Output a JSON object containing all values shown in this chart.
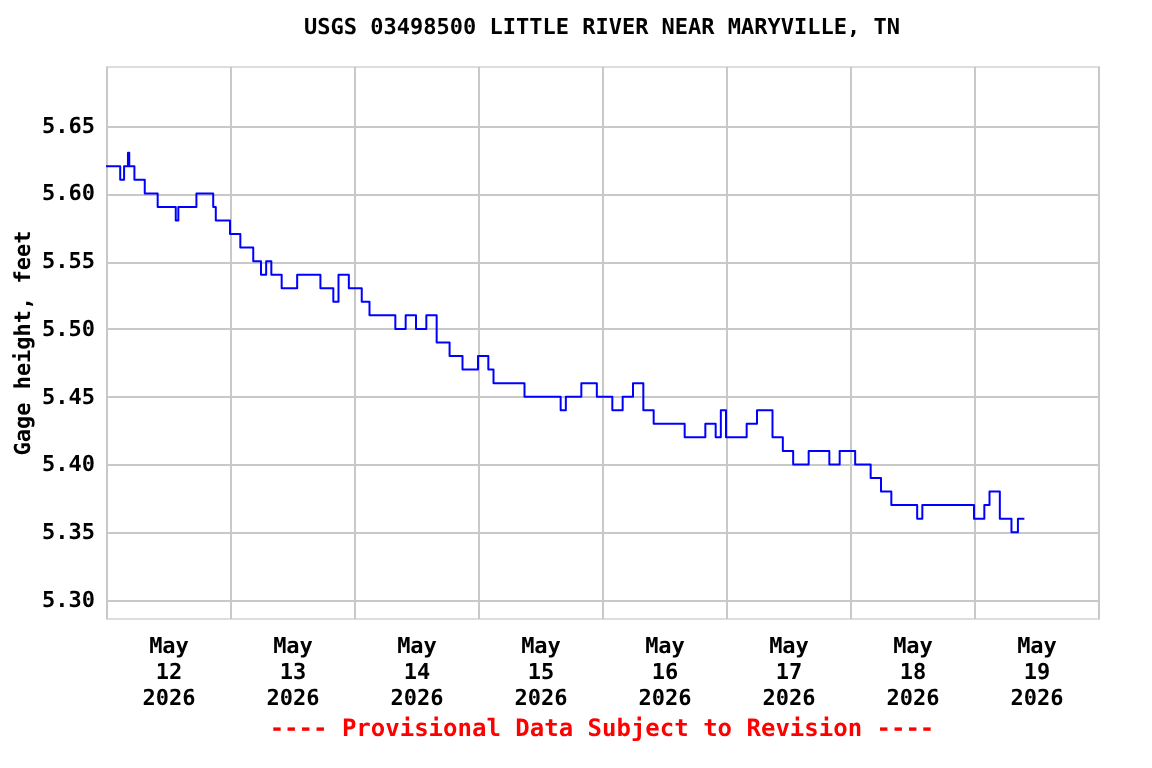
{
  "chart_data": {
    "type": "step",
    "title": "USGS 03498500 LITTLE RIVER NEAR MARYVILLE, TN",
    "ylabel": "Gage height, feet",
    "annotations": [
      "---- Provisional Data Subject to Revision ----"
    ],
    "x": [
      "2026-05-12T00:00",
      "2026-05-12T02:45",
      "2026-05-12T03:30",
      "2026-05-12T04:15",
      "2026-05-12T04:30",
      "2026-05-12T05:30",
      "2026-05-12T07:30",
      "2026-05-12T10:00",
      "2026-05-12T13:30",
      "2026-05-12T14:00",
      "2026-05-12T17:30",
      "2026-05-12T20:45",
      "2026-05-12T21:15",
      "2026-05-13T00:00",
      "2026-05-13T02:00",
      "2026-05-13T04:30",
      "2026-05-13T06:00",
      "2026-05-13T07:00",
      "2026-05-13T08:00",
      "2026-05-13T10:00",
      "2026-05-13T13:00",
      "2026-05-13T17:30",
      "2026-05-13T20:00",
      "2026-05-13T21:00",
      "2026-05-13T23:00",
      "2026-05-14T01:30",
      "2026-05-14T03:00",
      "2026-05-14T08:00",
      "2026-05-14T10:00",
      "2026-05-14T12:00",
      "2026-05-14T14:00",
      "2026-05-14T16:00",
      "2026-05-14T18:30",
      "2026-05-14T21:00",
      "2026-05-15T00:00",
      "2026-05-15T02:00",
      "2026-05-15T03:00",
      "2026-05-15T06:00",
      "2026-05-15T09:00",
      "2026-05-15T16:00",
      "2026-05-15T17:00",
      "2026-05-15T20:00",
      "2026-05-15T23:00",
      "2026-05-16T02:00",
      "2026-05-16T04:00",
      "2026-05-16T06:00",
      "2026-05-16T08:00",
      "2026-05-16T10:00",
      "2026-05-16T14:00",
      "2026-05-16T16:00",
      "2026-05-16T20:00",
      "2026-05-16T22:00",
      "2026-05-16T23:00",
      "2026-05-17T00:00",
      "2026-05-17T04:00",
      "2026-05-17T06:00",
      "2026-05-17T09:00",
      "2026-05-17T11:00",
      "2026-05-17T13:00",
      "2026-05-17T16:00",
      "2026-05-17T20:00",
      "2026-05-17T22:00",
      "2026-05-18T01:00",
      "2026-05-18T04:00",
      "2026-05-18T06:00",
      "2026-05-18T08:00",
      "2026-05-18T11:00",
      "2026-05-18T13:00",
      "2026-05-18T14:00",
      "2026-05-18T20:00",
      "2026-05-19T00:00",
      "2026-05-19T02:00",
      "2026-05-19T03:00",
      "2026-05-19T05:00",
      "2026-05-19T07:15",
      "2026-05-19T08:30",
      "2026-05-19T09:45"
    ],
    "series": [
      {
        "color": "#0000ff",
        "values": [
          5.62,
          5.61,
          5.62,
          5.63,
          5.62,
          5.61,
          5.6,
          5.59,
          5.58,
          5.59,
          5.6,
          5.59,
          5.58,
          5.57,
          5.56,
          5.55,
          5.54,
          5.55,
          5.54,
          5.53,
          5.54,
          5.53,
          5.52,
          5.54,
          5.53,
          5.52,
          5.51,
          5.5,
          5.51,
          5.5,
          5.51,
          5.49,
          5.48,
          5.47,
          5.48,
          5.47,
          5.46,
          5.46,
          5.45,
          5.44,
          5.45,
          5.46,
          5.45,
          5.44,
          5.45,
          5.46,
          5.44,
          5.43,
          5.43,
          5.42,
          5.43,
          5.42,
          5.44,
          5.42,
          5.43,
          5.44,
          5.42,
          5.41,
          5.4,
          5.41,
          5.4,
          5.41,
          5.4,
          5.39,
          5.38,
          5.37,
          5.37,
          5.36,
          5.37,
          5.37,
          5.36,
          5.37,
          5.38,
          5.36,
          5.35,
          5.36,
          5.36
        ]
      }
    ],
    "xlim": [
      "2026-05-12T00:00",
      "2026-05-20T00:00"
    ],
    "xticks": [
      {
        "value": "2026-05-12T00:00",
        "label": null
      },
      {
        "value": "2026-05-12T12:00",
        "label": "May\n12\n2026"
      },
      {
        "value": "2026-05-13T00:00",
        "label": null
      },
      {
        "value": "2026-05-13T12:00",
        "label": "May\n13\n2026"
      },
      {
        "value": "2026-05-14T00:00",
        "label": null
      },
      {
        "value": "2026-05-14T12:00",
        "label": "May\n14\n2026"
      },
      {
        "value": "2026-05-15T00:00",
        "label": null
      },
      {
        "value": "2026-05-15T12:00",
        "label": "May\n15\n2026"
      },
      {
        "value": "2026-05-16T00:00",
        "label": null
      },
      {
        "value": "2026-05-16T12:00",
        "label": "May\n16\n2026"
      },
      {
        "value": "2026-05-17T00:00",
        "label": null
      },
      {
        "value": "2026-05-17T12:00",
        "label": "May\n17\n2026"
      },
      {
        "value": "2026-05-18T00:00",
        "label": null
      },
      {
        "value": "2026-05-18T12:00",
        "label": "May\n18\n2026"
      },
      {
        "value": "2026-05-19T00:00",
        "label": null
      },
      {
        "value": "2026-05-19T12:00",
        "label": "May\n19\n2026"
      },
      {
        "value": "2026-05-20T00:00",
        "label": null
      }
    ],
    "ylim": [
      5.2867,
      5.694
    ],
    "yticks": [
      {
        "value": 5.3,
        "label": "5.30"
      },
      5.35,
      {
        "value": 5.4,
        "label": "5.40"
      },
      5.45,
      {
        "value": 5.5,
        "label": "5.50"
      },
      5.55,
      {
        "value": 5.6,
        "label": "5.60"
      },
      5.65
    ],
    "grid": true,
    "legend": false,
    "marker": "none",
    "line_style": "solid"
  }
}
